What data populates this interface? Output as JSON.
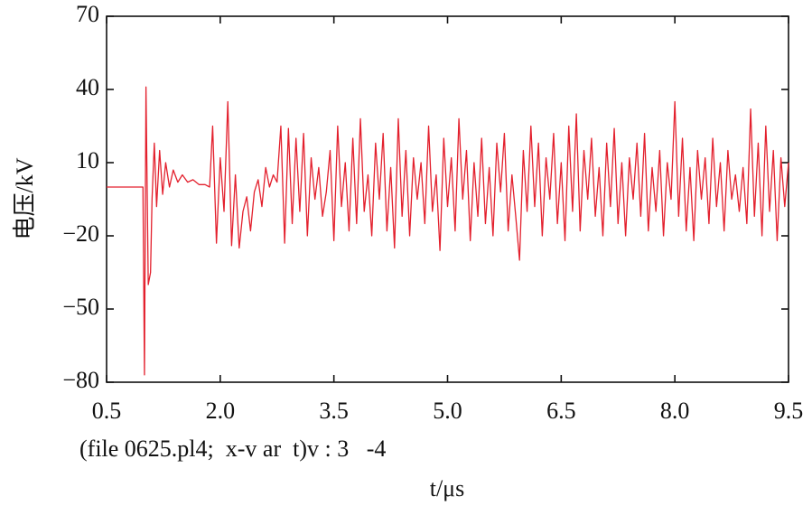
{
  "chart_data": {
    "type": "line",
    "xlabel": "t/μs",
    "ylabel": "电压/kV",
    "annotation": "(file 0625.pl4;  x-v ar  t)v : 3   -4",
    "xlim": [
      0.5,
      9.5
    ],
    "xticks": [
      0.5,
      {
        "value": 2,
        "label": "2.0"
      },
      3.5,
      {
        "value": 5,
        "label": "5.0"
      },
      6.5,
      {
        "value": 8,
        "label": "8.0"
      },
      9.5
    ],
    "ylim": [
      -80,
      70
    ],
    "yticks": [
      {
        "value": -80,
        "label": "−80"
      },
      {
        "value": -50,
        "label": "−50"
      },
      {
        "value": -20,
        "label": "−20"
      },
      10,
      40,
      70
    ],
    "x": [
      0.5,
      0.98,
      1.0,
      1.02,
      1.05,
      1.08,
      1.1,
      1.13,
      1.16,
      1.2,
      1.24,
      1.28,
      1.33,
      1.38,
      1.44,
      1.5,
      1.57,
      1.64,
      1.72,
      1.8,
      1.86,
      1.9,
      1.95,
      2.0,
      2.05,
      2.1,
      2.15,
      2.2,
      2.25,
      2.3,
      2.35,
      2.4,
      2.45,
      2.5,
      2.55,
      2.6,
      2.65,
      2.7,
      2.75,
      2.8,
      2.85,
      2.9,
      2.95,
      3.0,
      3.05,
      3.1,
      3.15,
      3.2,
      3.25,
      3.3,
      3.35,
      3.4,
      3.45,
      3.5,
      3.55,
      3.6,
      3.65,
      3.7,
      3.75,
      3.8,
      3.85,
      3.9,
      3.95,
      4.0,
      4.05,
      4.1,
      4.15,
      4.2,
      4.25,
      4.3,
      4.35,
      4.4,
      4.45,
      4.5,
      4.55,
      4.6,
      4.65,
      4.7,
      4.75,
      4.8,
      4.85,
      4.9,
      4.95,
      5.0,
      5.05,
      5.1,
      5.15,
      5.2,
      5.25,
      5.3,
      5.35,
      5.4,
      5.45,
      5.5,
      5.55,
      5.6,
      5.65,
      5.7,
      5.75,
      5.8,
      5.85,
      5.9,
      5.95,
      6.0,
      6.05,
      6.1,
      6.15,
      6.2,
      6.25,
      6.3,
      6.35,
      6.4,
      6.45,
      6.5,
      6.55,
      6.6,
      6.65,
      6.7,
      6.75,
      6.8,
      6.85,
      6.9,
      6.95,
      7.0,
      7.05,
      7.1,
      7.15,
      7.2,
      7.25,
      7.3,
      7.35,
      7.4,
      7.45,
      7.5,
      7.55,
      7.6,
      7.65,
      7.7,
      7.75,
      7.8,
      7.85,
      7.9,
      7.95,
      8.0,
      8.05,
      8.1,
      8.15,
      8.2,
      8.25,
      8.3,
      8.35,
      8.4,
      8.45,
      8.5,
      8.55,
      8.6,
      8.65,
      8.7,
      8.75,
      8.8,
      8.85,
      8.9,
      8.95,
      9.0,
      9.05,
      9.1,
      9.15,
      9.2,
      9.25,
      9.3,
      9.35,
      9.4,
      9.45,
      9.5
    ],
    "series": [
      {
        "color": "#e3202d",
        "values": [
          0,
          0,
          -77,
          41,
          -40,
          -35,
          -5,
          18,
          -8,
          15,
          -3,
          10,
          0,
          7,
          2,
          5,
          2,
          3,
          1,
          1,
          0,
          25,
          -23,
          12,
          -10,
          35,
          -24,
          5,
          -25,
          -10,
          -4,
          -18,
          -2,
          3,
          -8,
          8,
          0,
          5,
          2,
          25,
          -23,
          24,
          -15,
          20,
          -10,
          22,
          -20,
          12,
          -5,
          8,
          -12,
          -2,
          15,
          -22,
          25,
          -8,
          10,
          -18,
          20,
          -15,
          28,
          -10,
          5,
          -20,
          18,
          -5,
          22,
          -18,
          8,
          -25,
          28,
          -12,
          15,
          -20,
          12,
          -5,
          10,
          -15,
          25,
          -10,
          5,
          -26,
          20,
          -8,
          12,
          -18,
          28,
          -5,
          15,
          -22,
          10,
          -12,
          20,
          -15,
          8,
          -20,
          18,
          -2,
          22,
          -18,
          5,
          -12,
          -30,
          15,
          -10,
          25,
          -8,
          18,
          -20,
          12,
          -5,
          22,
          -15,
          10,
          -22,
          25,
          -10,
          30,
          -18,
          15,
          -5,
          20,
          -12,
          8,
          -20,
          18,
          -8,
          24,
          -15,
          10,
          -20,
          12,
          -5,
          18,
          -12,
          22,
          -18,
          8,
          -10,
          15,
          -20,
          10,
          -5,
          35,
          -12,
          20,
          -18,
          8,
          -22,
          15,
          -5,
          12,
          -15,
          20,
          -8,
          10,
          -18,
          15,
          -5,
          5,
          -10,
          8,
          -15,
          32,
          -12,
          18,
          -20,
          25,
          -10,
          15,
          -22,
          12,
          -8,
          10
        ]
      }
    ]
  }
}
